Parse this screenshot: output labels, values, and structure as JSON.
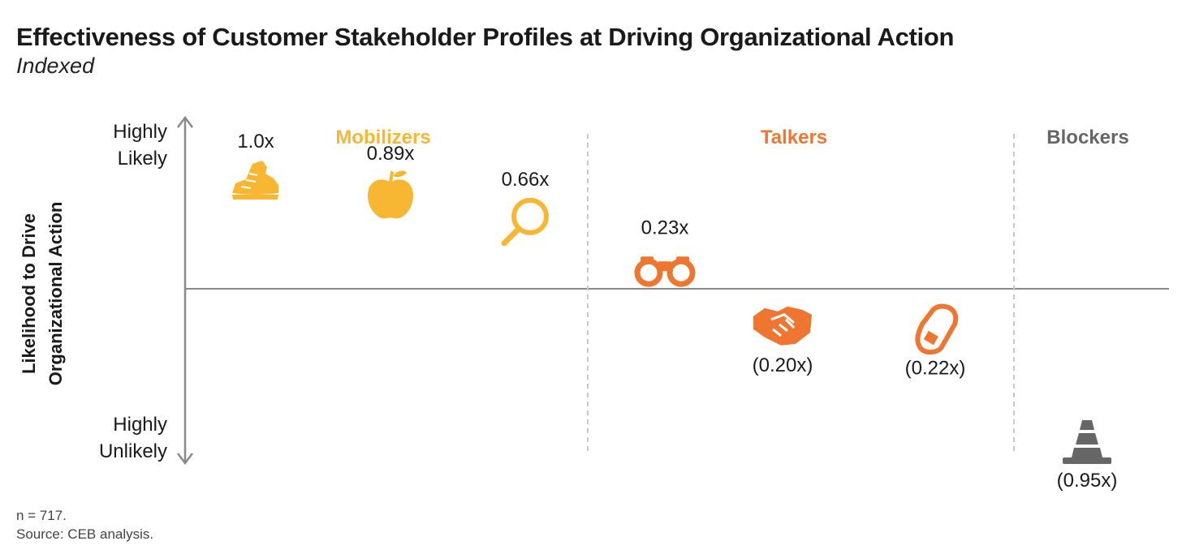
{
  "title": "Effectiveness of Customer Stakeholder Profiles at Driving Organizational Action",
  "subtitle": "Indexed",
  "footnotes": {
    "n": "n = 717.",
    "source": "Source: CEB analysis."
  },
  "colors": {
    "mobilizers": "#F7B733",
    "talkers": "#EE7630",
    "blockers": "#666666",
    "axis": "#8a8a8a",
    "divider": "#c8c8c8",
    "text": "#1a1a1a"
  },
  "chart_data": {
    "type": "scatter",
    "ylabel_lines": [
      "Likelihood to Drive",
      "Organizational Action"
    ],
    "y_top_label": [
      "Highly",
      "Likely"
    ],
    "y_bottom_label": [
      "Highly",
      "Unlikely"
    ],
    "ylim": [
      -1.0,
      1.1
    ],
    "grid": false,
    "groups": [
      {
        "name": "Mobilizers",
        "color_key": "mobilizers"
      },
      {
        "name": "Talkers",
        "color_key": "talkers"
      },
      {
        "name": "Blockers",
        "color_key": "blockers"
      }
    ],
    "points": [
      {
        "group": 0,
        "value": 1.0,
        "label": "1.0x",
        "icon": "sneaker-icon"
      },
      {
        "group": 0,
        "value": 0.89,
        "label": "0.89x",
        "icon": "apple-icon"
      },
      {
        "group": 0,
        "value": 0.66,
        "label": "0.66x",
        "icon": "magnifier-icon"
      },
      {
        "group": 1,
        "value": 0.23,
        "label": "0.23x",
        "icon": "binoculars-icon"
      },
      {
        "group": 1,
        "value": -0.2,
        "label": "(0.20x)",
        "icon": "handshake-icon"
      },
      {
        "group": 1,
        "value": -0.22,
        "label": "(0.22x)",
        "icon": "carabiner-icon"
      },
      {
        "group": 2,
        "value": -0.95,
        "label": "(0.95x)",
        "icon": "traffic-cone-icon"
      }
    ]
  }
}
